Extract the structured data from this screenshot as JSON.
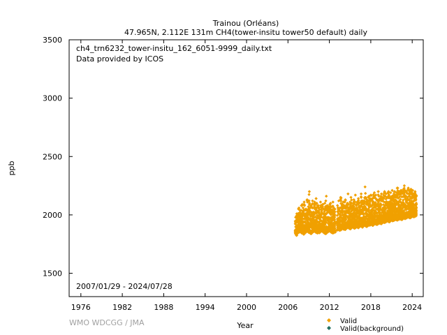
{
  "header": {
    "title": "Trainou (Orléans)",
    "subtitle": "47.965N, 2.112E 131m    CH4(tower-insitu tower50 default) daily"
  },
  "annotations": {
    "filename": "ch4_trn6232_tower-insitu_162_6051-9999_daily.txt",
    "provider": "Data provided by ICOS",
    "date_range": "2007/01/29 - 2024/07/28"
  },
  "credit": "WMO WDCGG / JMA",
  "colors": {
    "valid": "#f0a000",
    "valid_background": "#207060",
    "credit": "#a0a0a0"
  },
  "chart_data": {
    "type": "scatter",
    "xlabel": "Year",
    "ylabel": "ppb",
    "xlim": [
      1974.3,
      2025.6
    ],
    "ylim": [
      1300,
      3500
    ],
    "xticks": [
      1976,
      1982,
      1988,
      1994,
      2000,
      2006,
      2012,
      2018,
      2024
    ],
    "yticks": [
      1500,
      2000,
      2500,
      3000,
      3500
    ],
    "legend": {
      "placement": "bottom-right",
      "entries": [
        "Valid",
        "Valid(background)"
      ]
    },
    "series": [
      {
        "name": "Valid",
        "marker": "diamond",
        "x": [
          2007.1,
          2007.25,
          2007.4,
          2007.55,
          2007.7,
          2007.85,
          2008.0,
          2008.15,
          2008.3,
          2008.45,
          2008.6,
          2008.75,
          2008.9,
          2009.05,
          2009.2,
          2009.35,
          2009.5,
          2009.65,
          2009.8,
          2009.95,
          2010.1,
          2010.25,
          2010.4,
          2010.55,
          2010.7,
          2010.85,
          2011.0,
          2011.15,
          2011.3,
          2011.45,
          2011.6,
          2011.75,
          2011.9,
          2012.05,
          2012.2,
          2012.35,
          2012.5,
          2012.65,
          2012.8,
          2013.2,
          2013.35,
          2013.5,
          2013.65,
          2013.8,
          2013.95,
          2014.1,
          2014.25,
          2014.4,
          2014.55,
          2014.7,
          2014.85,
          2015.0,
          2015.15,
          2015.3,
          2015.45,
          2015.6,
          2015.75,
          2015.9,
          2016.05,
          2016.2,
          2016.35,
          2016.5,
          2016.65,
          2016.8,
          2016.95,
          2017.1,
          2017.25,
          2017.4,
          2017.55,
          2017.7,
          2017.85,
          2018.0,
          2018.15,
          2018.3,
          2018.45,
          2018.6,
          2018.75,
          2018.9,
          2019.05,
          2019.2,
          2019.35,
          2019.5,
          2019.65,
          2019.8,
          2019.95,
          2020.1,
          2020.25,
          2020.4,
          2020.55,
          2020.7,
          2020.85,
          2021.0,
          2021.15,
          2021.3,
          2021.45,
          2021.6,
          2021.75,
          2021.9,
          2022.05,
          2022.2,
          2022.35,
          2022.5,
          2022.65,
          2022.8,
          2022.95,
          2023.1,
          2023.25,
          2023.4,
          2023.55,
          2023.7,
          2023.85,
          2024.0,
          2024.15,
          2024.3,
          2024.45,
          2024.55
        ],
        "ymin": [
          1840,
          1825,
          1845,
          1850,
          1855,
          1860,
          1845,
          1850,
          1835,
          1848,
          1852,
          1860,
          1855,
          1850,
          1845,
          1840,
          1848,
          1855,
          1860,
          1858,
          1850,
          1845,
          1852,
          1848,
          1855,
          1862,
          1858,
          1850,
          1845,
          1840,
          1848,
          1855,
          1860,
          1865,
          1858,
          1850,
          1845,
          1848,
          1852,
          1870,
          1875,
          1868,
          1872,
          1880,
          1885,
          1878,
          1875,
          1880,
          1888,
          1892,
          1885,
          1880,
          1888,
          1895,
          1890,
          1885,
          1892,
          1898,
          1895,
          1890,
          1898,
          1905,
          1900,
          1895,
          1902,
          1910,
          1905,
          1900,
          1908,
          1915,
          1912,
          1918,
          1915,
          1910,
          1920,
          1925,
          1920,
          1918,
          1925,
          1932,
          1928,
          1925,
          1932,
          1940,
          1935,
          1938,
          1942,
          1948,
          1944,
          1940,
          1948,
          1955,
          1950,
          1952,
          1958,
          1962,
          1958,
          1955,
          1962,
          1968,
          1964,
          1960,
          1968,
          1972,
          1968,
          1972,
          1978,
          1982,
          1978,
          1975,
          1982,
          1988,
          1984,
          1985,
          1990,
          1992
        ],
        "ymax": [
          1980,
          2010,
          1995,
          2060,
          2020,
          2040,
          2090,
          2060,
          2110,
          2080,
          2050,
          2130,
          2070,
          2200,
          2100,
          2080,
          2120,
          2060,
          2110,
          2090,
          2140,
          2100,
          2080,
          2060,
          2110,
          2070,
          2090,
          2050,
          2100,
          2120,
          2160,
          2080,
          2060,
          2090,
          2100,
          2070,
          2110,
          2060,
          2050,
          2080,
          2120,
          2060,
          2150,
          2090,
          2110,
          2080,
          2130,
          2070,
          2100,
          2180,
          2090,
          2110,
          2150,
          2080,
          2100,
          2130,
          2170,
          2090,
          2110,
          2140,
          2100,
          2080,
          2180,
          2120,
          2110,
          2150,
          2240,
          2130,
          2100,
          2160,
          2120,
          2170,
          2140,
          2120,
          2190,
          2150,
          2170,
          2130,
          2200,
          2160,
          2140,
          2180,
          2150,
          2170,
          2200,
          2160,
          2180,
          2150,
          2200,
          2170,
          2190,
          2160,
          2210,
          2180,
          2200,
          2170,
          2190,
          2230,
          2200,
          2180,
          2210,
          2190,
          2200,
          2250,
          2210,
          2200,
          2190,
          2230,
          2210,
          2200,
          2220,
          2210,
          2160,
          2180,
          2200,
          2170
        ]
      },
      {
        "name": "Valid(background)",
        "marker": "diamond",
        "x": [],
        "y": []
      }
    ]
  }
}
